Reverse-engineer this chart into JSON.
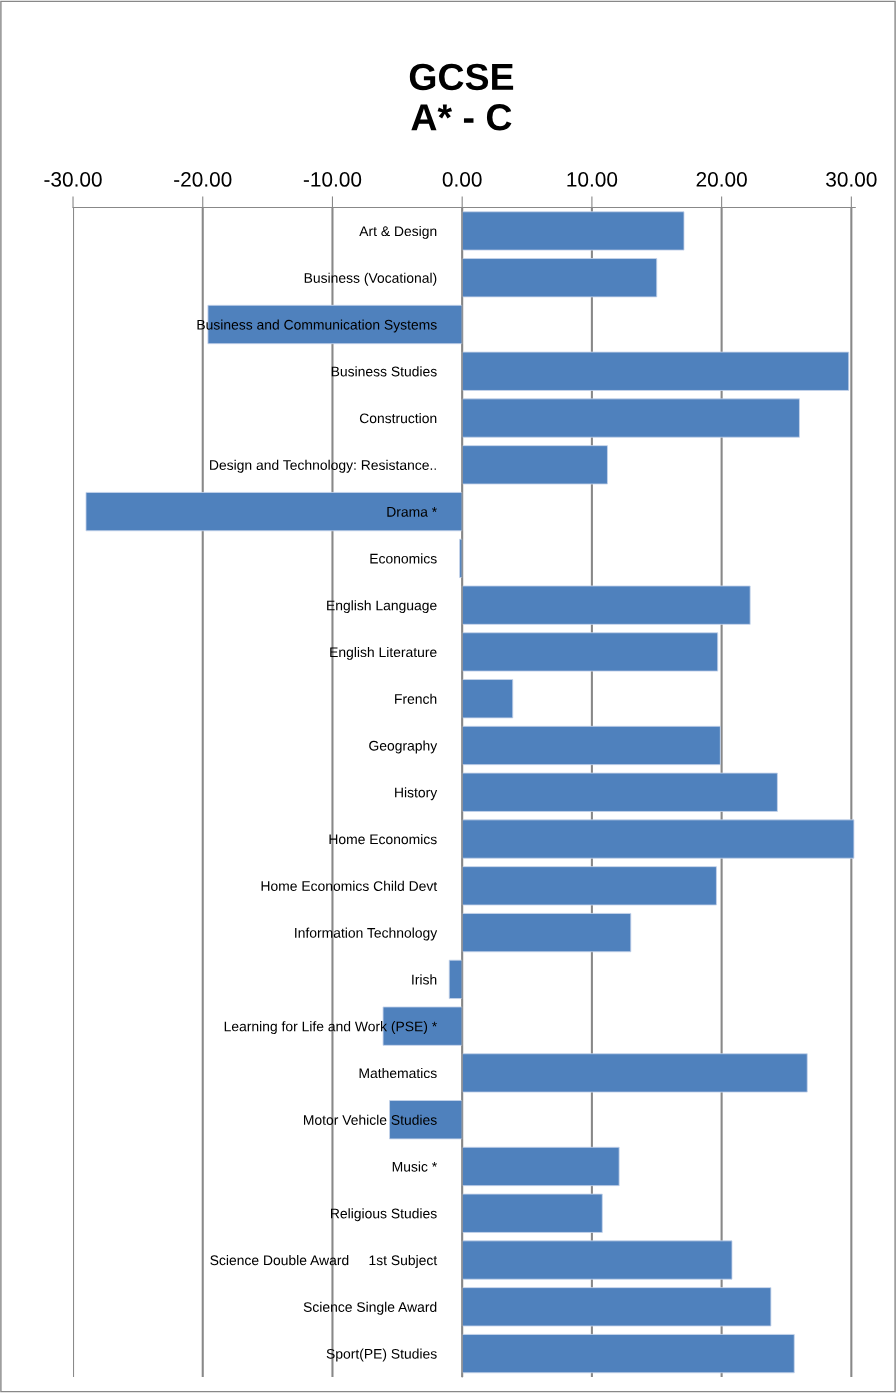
{
  "chart_data": {
    "type": "bar",
    "orientation": "horizontal",
    "title": "GCSE\nA* - C",
    "categories": [
      "Art & Design",
      "Business (Vocational)",
      "Business and Communication Systems",
      "Business Studies",
      "Construction",
      "Design and Technology: Resistance..",
      "Drama *",
      "Economics",
      "English Language",
      "English Literature",
      "French",
      "Geography",
      "History",
      "Home Economics",
      "Home Economics Child Devt",
      "Information Technology",
      "Irish",
      "Learning for Life and Work (PSE) *",
      "Mathematics",
      "Motor Vehicle Studies",
      "Music *",
      "Religious Studies",
      "Science Double Award     1st Subject",
      "Science Single Award",
      "Sport(PE) Studies"
    ],
    "values": [
      17.1,
      15.0,
      -19.6,
      29.8,
      26.0,
      11.2,
      -29.0,
      -0.2,
      22.2,
      19.7,
      3.9,
      19.9,
      24.3,
      30.2,
      19.6,
      13.0,
      -1.0,
      -6.1,
      26.6,
      -5.6,
      12.1,
      10.8,
      20.8,
      23.8,
      25.6
    ],
    "color": "#4f81bd",
    "xlim": [
      -30,
      30.3
    ],
    "xticks": [
      {
        "value": -30,
        "label": "-30.00"
      },
      {
        "value": -20,
        "label": "-20.00"
      },
      {
        "value": -10,
        "label": "-10.00"
      },
      {
        "value": 0,
        "label": "0.00"
      },
      {
        "value": 10,
        "label": "10.00"
      },
      {
        "value": 20,
        "label": "20.00"
      },
      {
        "value": 30,
        "label": "30.00"
      }
    ],
    "grid": "x"
  }
}
